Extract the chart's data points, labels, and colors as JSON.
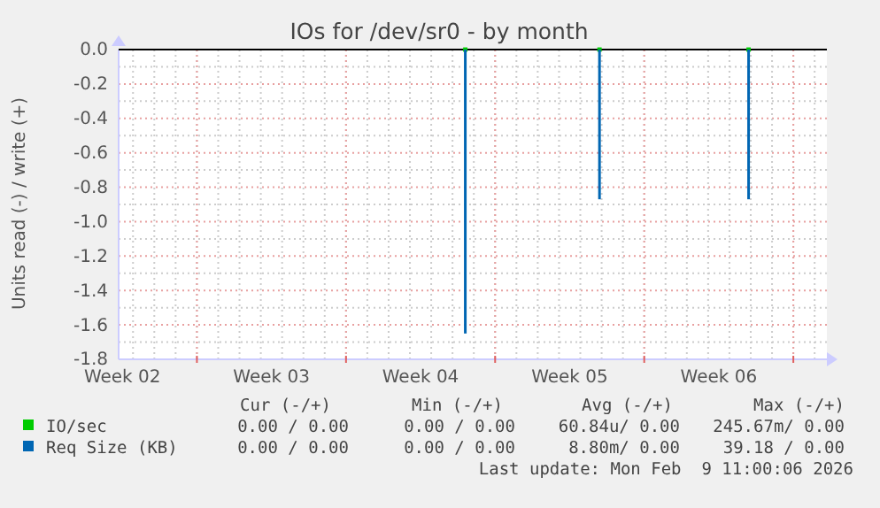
{
  "chart_data": {
    "type": "bar",
    "title": "IOs for /dev/sr0 - by month",
    "ylabel": "Units read (-) / write (+)",
    "categories": [
      "Week 02",
      null,
      null,
      null,
      null,
      null,
      null,
      null,
      null,
      null,
      null,
      null,
      null,
      null,
      null,
      null,
      null,
      null,
      null,
      null,
      "Week 03",
      null,
      null,
      null,
      null,
      null,
      null,
      null,
      null,
      null,
      null,
      null,
      null,
      null,
      null,
      null,
      null,
      null,
      null,
      null,
      "Week 04",
      null,
      null,
      null,
      null,
      null,
      null,
      null,
      null,
      null,
      null,
      null,
      null,
      null,
      null,
      null,
      null,
      null,
      null,
      null,
      "Week 05",
      null,
      null,
      null,
      null,
      null,
      null,
      null,
      null,
      null,
      null,
      null,
      null,
      null,
      null,
      null,
      null,
      null,
      null,
      null,
      "Week 06",
      null,
      null,
      null,
      null,
      null,
      null,
      null,
      null,
      null,
      null,
      null,
      null,
      null,
      null
    ],
    "ylim": [
      -1.8,
      0
    ],
    "yticks": [
      {
        "value": 0,
        "label": "0.0"
      },
      {
        "value": -0.2,
        "label": "-0.2"
      },
      {
        "value": -0.4,
        "label": "-0.4"
      },
      {
        "value": -0.6,
        "label": "-0.6"
      },
      {
        "value": -0.8,
        "label": "-0.8"
      },
      {
        "value": -1,
        "label": "-1.0"
      },
      {
        "value": -1.2,
        "label": "-1.2"
      },
      {
        "value": -1.4,
        "label": "-1.4"
      },
      {
        "value": -1.6,
        "label": "-1.6"
      },
      {
        "value": -1.8,
        "label": "-1.8"
      }
    ],
    "grid": true,
    "legend": "bottom",
    "ref_lines": [
      {
        "axis": "y",
        "value": 0,
        "color": "#000000"
      }
    ],
    "series": [
      {
        "name": "IO/sec",
        "type": "scatter",
        "color": "#00cc00",
        "marker": "square",
        "values": [
          null,
          null,
          null,
          null,
          null,
          null,
          null,
          null,
          null,
          null,
          null,
          null,
          null,
          null,
          null,
          null,
          null,
          null,
          null,
          null,
          null,
          null,
          null,
          null,
          null,
          null,
          null,
          null,
          null,
          null,
          null,
          null,
          null,
          null,
          null,
          null,
          null,
          null,
          null,
          null,
          null,
          null,
          null,
          null,
          null,
          null,
          0,
          null,
          null,
          null,
          null,
          null,
          null,
          null,
          null,
          null,
          null,
          null,
          null,
          null,
          null,
          null,
          null,
          null,
          0,
          null,
          null,
          null,
          null,
          null,
          null,
          null,
          null,
          null,
          null,
          null,
          null,
          null,
          null,
          null,
          null,
          null,
          null,
          null,
          0,
          null,
          null,
          null,
          null,
          null,
          null,
          null,
          null,
          null,
          null
        ]
      },
      {
        "name": "Req Size (KB)",
        "color": "#0066b3",
        "values": [
          0,
          0,
          0,
          0,
          0,
          0,
          0,
          0,
          0,
          0,
          0,
          0,
          0,
          0,
          0,
          0,
          0,
          0,
          0,
          0,
          0,
          0,
          0,
          0,
          0,
          0,
          0,
          0,
          0,
          0,
          0,
          0,
          0,
          0,
          0,
          0,
          0,
          0,
          0,
          0,
          0,
          0,
          0,
          0,
          0,
          0,
          -1.65,
          0,
          0,
          0,
          0,
          0,
          0,
          0,
          0,
          0,
          0,
          0,
          0,
          0,
          0,
          0,
          0,
          0,
          -0.87,
          0,
          0,
          0,
          0,
          0,
          0,
          0,
          0,
          0,
          0,
          0,
          0,
          0,
          0,
          0,
          0,
          0,
          0,
          0,
          -0.87,
          0,
          0,
          0,
          0,
          0,
          0,
          0,
          0,
          0,
          0
        ]
      }
    ],
    "annotations": [
      "Cur (-/+)",
      "Min (-/+)",
      "Avg (-/+)",
      "Max (-/+)",
      "0.00 / 0.00",
      "0.00 / 0.00",
      "60.84u/ 0.00",
      "245.67m/ 0.00",
      "0.00 / 0.00",
      "0.00 / 0.00",
      "8.80m/ 0.00",
      "39.18 / 0.00",
      "Last update: Mon Feb  9 11:00:06 2026"
    ]
  }
}
